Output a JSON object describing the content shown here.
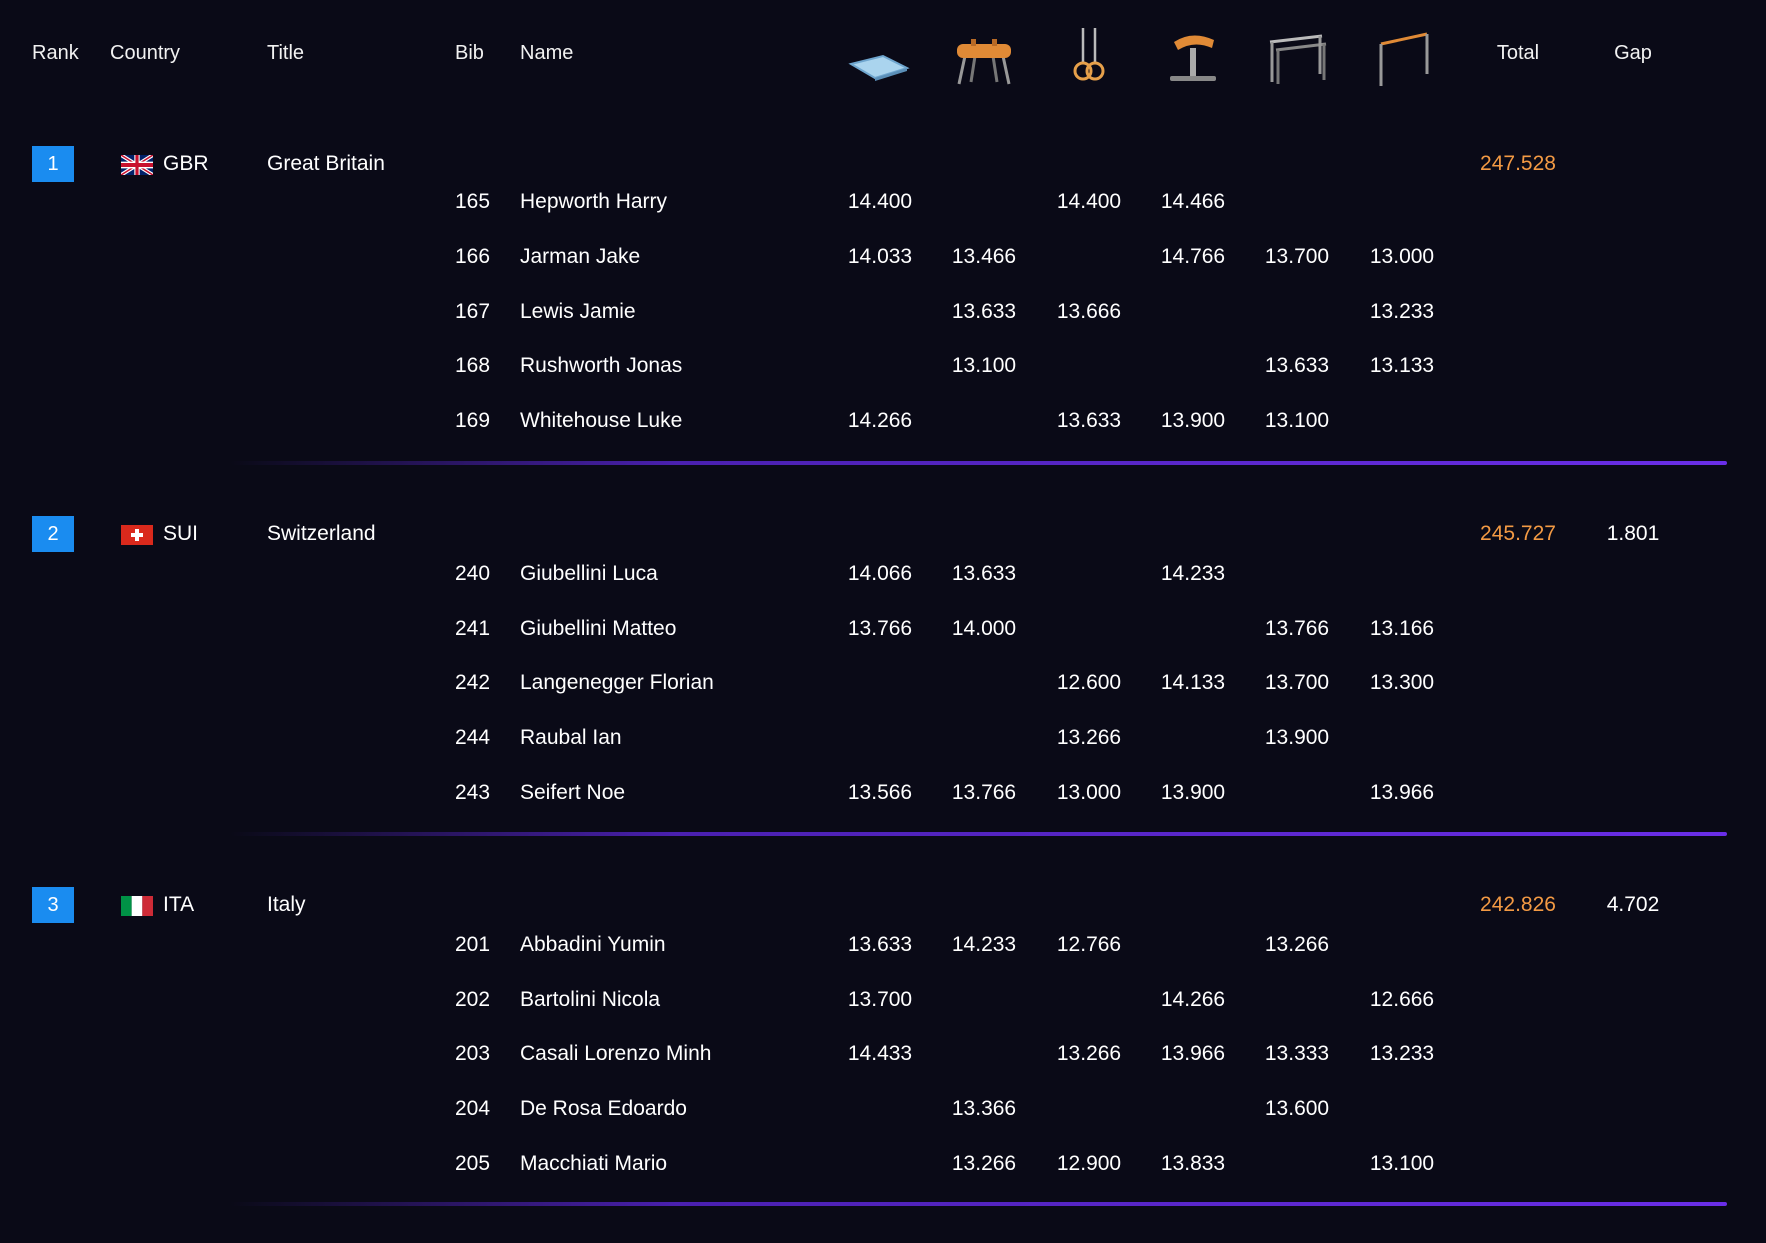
{
  "header": {
    "rank": "Rank",
    "country": "Country",
    "title": "Title",
    "bib": "Bib",
    "name": "Name",
    "total": "Total",
    "gap": "Gap",
    "apparatus_icons": [
      "floor-exercise-icon",
      "pommel-horse-icon",
      "rings-icon",
      "vault-icon",
      "parallel-bars-icon",
      "horizontal-bar-icon"
    ]
  },
  "colors": {
    "background": "#0a0a17",
    "rank_badge": "#1a8cf0",
    "total": "#f39a44",
    "divider": "#6a2ee8"
  },
  "teams": [
    {
      "rank": "1",
      "code": "GBR",
      "name": "Great Britain",
      "flag": "gbr-flag-icon",
      "total": "247.528",
      "gap": "",
      "athletes": [
        {
          "bib": "165",
          "name": "Hepworth Harry",
          "scores": [
            "14.400",
            "",
            "14.400",
            "14.466",
            "",
            ""
          ]
        },
        {
          "bib": "166",
          "name": "Jarman Jake",
          "scores": [
            "14.033",
            "13.466",
            "",
            "14.766",
            "13.700",
            "13.000"
          ]
        },
        {
          "bib": "167",
          "name": "Lewis Jamie",
          "scores": [
            "",
            "13.633",
            "13.666",
            "",
            "",
            "13.233"
          ]
        },
        {
          "bib": "168",
          "name": "Rushworth Jonas",
          "scores": [
            "",
            "13.100",
            "",
            "",
            "13.633",
            "13.133"
          ]
        },
        {
          "bib": "169",
          "name": "Whitehouse Luke",
          "scores": [
            "14.266",
            "",
            "13.633",
            "13.900",
            "13.100",
            ""
          ]
        }
      ]
    },
    {
      "rank": "2",
      "code": "SUI",
      "name": "Switzerland",
      "flag": "sui-flag-icon",
      "total": "245.727",
      "gap": "1.801",
      "athletes": [
        {
          "bib": "240",
          "name": "Giubellini Luca",
          "scores": [
            "14.066",
            "13.633",
            "",
            "14.233",
            "",
            ""
          ]
        },
        {
          "bib": "241",
          "name": "Giubellini Matteo",
          "scores": [
            "13.766",
            "14.000",
            "",
            "",
            "13.766",
            "13.166"
          ]
        },
        {
          "bib": "242",
          "name": "Langenegger Florian",
          "scores": [
            "",
            "",
            "12.600",
            "14.133",
            "13.700",
            "13.300"
          ]
        },
        {
          "bib": "244",
          "name": "Raubal Ian",
          "scores": [
            "",
            "",
            "13.266",
            "",
            "13.900",
            ""
          ]
        },
        {
          "bib": "243",
          "name": "Seifert Noe",
          "scores": [
            "13.566",
            "13.766",
            "13.000",
            "13.900",
            "",
            "13.966"
          ]
        }
      ]
    },
    {
      "rank": "3",
      "code": "ITA",
      "name": "Italy",
      "flag": "ita-flag-icon",
      "total": "242.826",
      "gap": "4.702",
      "athletes": [
        {
          "bib": "201",
          "name": "Abbadini Yumin",
          "scores": [
            "13.633",
            "14.233",
            "12.766",
            "",
            "13.266",
            ""
          ]
        },
        {
          "bib": "202",
          "name": "Bartolini Nicola",
          "scores": [
            "13.700",
            "",
            "",
            "14.266",
            "",
            "12.666"
          ]
        },
        {
          "bib": "203",
          "name": "Casali Lorenzo Minh",
          "scores": [
            "14.433",
            "",
            "13.266",
            "13.966",
            "13.333",
            "13.233"
          ]
        },
        {
          "bib": "204",
          "name": "De Rosa Edoardo",
          "scores": [
            "",
            "13.366",
            "",
            "",
            "13.600",
            ""
          ]
        },
        {
          "bib": "205",
          "name": "Macchiati Mario",
          "scores": [
            "",
            "13.266",
            "12.900",
            "13.833",
            "",
            "13.100"
          ]
        }
      ]
    }
  ]
}
